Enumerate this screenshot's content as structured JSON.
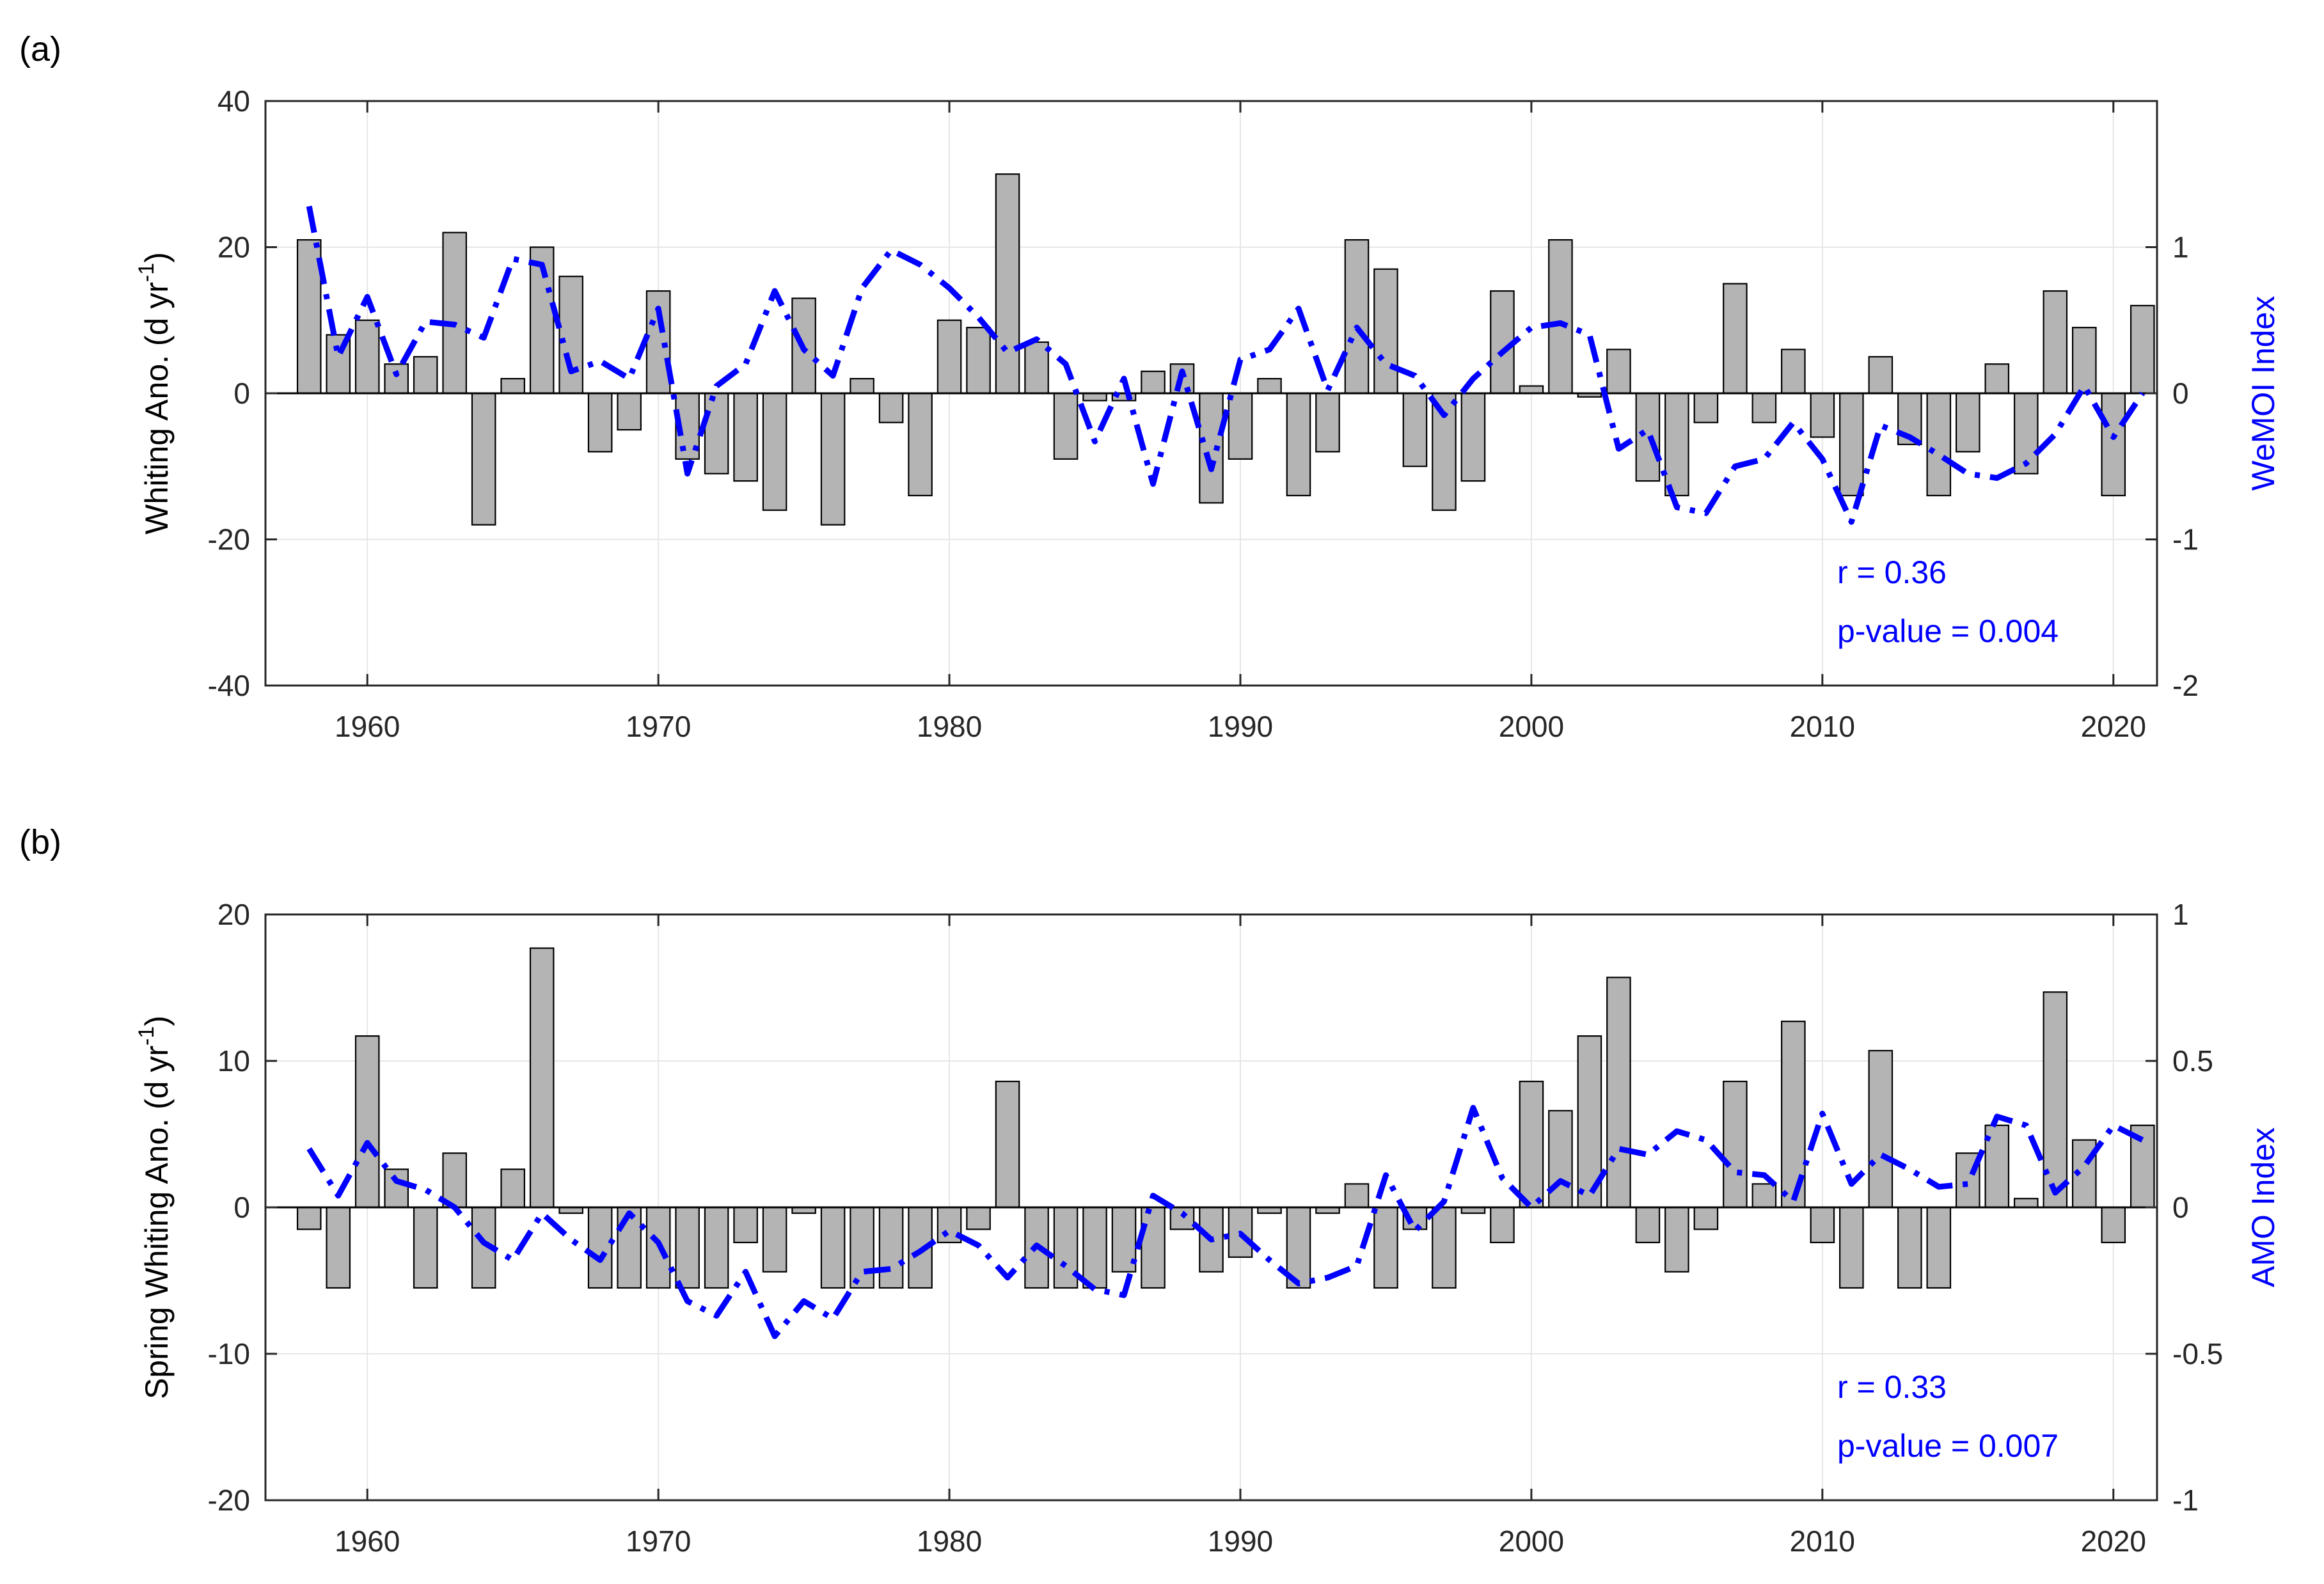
{
  "chart_data": [
    {
      "type": "bar+line",
      "panel_label": "(a)",
      "xlim": [
        1956.5,
        2021.5
      ],
      "xticks": [
        1960,
        1970,
        1980,
        1990,
        2000,
        2010,
        2020
      ],
      "ylabel_left_main": "Whiting Ano. (d yr",
      "ylabel_left_sup": "-1",
      "ylabel_left_end": ")",
      "ylim_left": [
        -40,
        40
      ],
      "yticks_left": [
        -40,
        -20,
        0,
        20,
        40
      ],
      "ylabel_right": "WeMOI Index",
      "ylim_right": [
        -2,
        2
      ],
      "yticks_right": [
        -2,
        -1,
        0,
        1
      ],
      "bar_series": {
        "name": "Whiting Ano.",
        "x": [
          1958,
          1959,
          1960,
          1961,
          1962,
          1963,
          1964,
          1965,
          1966,
          1967,
          1968,
          1969,
          1970,
          1971,
          1972,
          1973,
          1974,
          1975,
          1976,
          1977,
          1978,
          1979,
          1980,
          1981,
          1982,
          1983,
          1984,
          1985,
          1986,
          1987,
          1988,
          1989,
          1990,
          1991,
          1992,
          1993,
          1994,
          1995,
          1996,
          1997,
          1998,
          1999,
          2000,
          2001,
          2002,
          2003,
          2004,
          2005,
          2006,
          2007,
          2008,
          2009,
          2010,
          2011,
          2012,
          2013,
          2014,
          2015,
          2016,
          2017,
          2018,
          2019,
          2020,
          2021
        ],
        "values": [
          21,
          8,
          10,
          4,
          5,
          22,
          -18,
          2,
          20,
          16,
          -8,
          -5,
          14,
          -9,
          -11,
          -12,
          -16,
          13,
          -18,
          2,
          -4,
          -14,
          10,
          9,
          30,
          7,
          -9,
          -1,
          -1,
          3,
          4,
          -15,
          -9,
          2,
          -14,
          -8,
          21,
          17,
          -10,
          -16,
          -12,
          14,
          1,
          21,
          -0.5,
          6,
          -12,
          -14,
          -4,
          15,
          -4,
          6,
          -6,
          -14,
          5,
          -7,
          -14,
          -8,
          4,
          -11,
          14,
          9,
          -14,
          12
        ]
      },
      "line_series": {
        "name": "WeMOI Index",
        "x": [
          1958,
          1959,
          1960,
          1961,
          1962,
          1963,
          1964,
          1965,
          1966,
          1967,
          1968,
          1969,
          1970,
          1971,
          1972,
          1973,
          1974,
          1975,
          1976,
          1977,
          1978,
          1979,
          1980,
          1981,
          1982,
          1983,
          1984,
          1985,
          1986,
          1987,
          1988,
          1989,
          1990,
          1991,
          1992,
          1993,
          1994,
          1995,
          1996,
          1997,
          1998,
          1999,
          2000,
          2001,
          2002,
          2003,
          2004,
          2005,
          2006,
          2007,
          2008,
          2009,
          2010,
          2011,
          2012,
          2013,
          2014,
          2015,
          2016,
          2017,
          2018,
          2019,
          2020,
          2021
        ],
        "values": [
          1.28,
          0.25,
          0.66,
          0.13,
          0.49,
          0.47,
          0.38,
          0.92,
          0.88,
          0.15,
          0.22,
          0.1,
          0.58,
          -0.55,
          0.05,
          0.2,
          0.7,
          0.3,
          0.12,
          0.72,
          0.98,
          0.88,
          0.72,
          0.52,
          0.28,
          0.37,
          0.2,
          -0.33,
          0.1,
          -0.62,
          0.15,
          -0.52,
          0.23,
          0.3,
          0.58,
          0.02,
          0.45,
          0.2,
          0.12,
          -0.15,
          0.1,
          0.28,
          0.45,
          0.48,
          0.4,
          -0.38,
          -0.25,
          -0.78,
          -0.82,
          -0.5,
          -0.45,
          -0.2,
          -0.45,
          -0.88,
          -0.22,
          -0.3,
          -0.42,
          -0.55,
          -0.58,
          -0.48,
          -0.28,
          0.05,
          -0.3,
          0.0
        ]
      },
      "annotation_r": "r  = 0.36",
      "annotation_p": "p-value = 0.004"
    },
    {
      "type": "bar+line",
      "panel_label": "(b)",
      "xlim": [
        1956.5,
        2021.5
      ],
      "xticks": [
        1960,
        1970,
        1980,
        1990,
        2000,
        2010,
        2020
      ],
      "ylabel_left_main": "Spring Whiting Ano. (d yr",
      "ylabel_left_sup": "-1",
      "ylabel_left_end": ")",
      "ylim_left": [
        -20,
        20
      ],
      "yticks_left": [
        -20,
        -10,
        0,
        10,
        20
      ],
      "ylabel_right": "AMO Index",
      "ylim_right": [
        -1,
        1
      ],
      "yticks_right": [
        -1,
        -0.5,
        0,
        0.5,
        1
      ],
      "bar_series": {
        "name": "Spring Whiting Ano.",
        "x": [
          1958,
          1959,
          1960,
          1961,
          1962,
          1963,
          1964,
          1965,
          1966,
          1967,
          1968,
          1969,
          1970,
          1971,
          1972,
          1973,
          1974,
          1975,
          1976,
          1977,
          1978,
          1979,
          1980,
          1981,
          1982,
          1983,
          1984,
          1985,
          1986,
          1987,
          1988,
          1989,
          1990,
          1991,
          1992,
          1993,
          1994,
          1995,
          1996,
          1997,
          1998,
          1999,
          2000,
          2001,
          2002,
          2003,
          2004,
          2005,
          2006,
          2007,
          2008,
          2009,
          2010,
          2011,
          2012,
          2013,
          2014,
          2015,
          2016,
          2017,
          2018,
          2019,
          2020,
          2021
        ],
        "values": [
          -1.5,
          -5.5,
          11.7,
          2.6,
          -5.5,
          3.7,
          -5.5,
          2.6,
          17.7,
          -0.4,
          -5.5,
          -5.5,
          -5.5,
          -5.5,
          -5.5,
          -2.4,
          -4.4,
          -0.4,
          -5.5,
          -5.5,
          -5.5,
          -5.5,
          -2.4,
          -1.5,
          8.6,
          -5.5,
          -5.5,
          -5.5,
          -4.4,
          -5.5,
          -1.5,
          -4.4,
          -3.4,
          -0.4,
          -5.5,
          -0.4,
          1.6,
          -5.5,
          -1.5,
          -5.5,
          -0.4,
          -2.4,
          8.6,
          6.6,
          11.7,
          15.7,
          -2.4,
          -4.4,
          -1.5,
          8.6,
          1.6,
          12.7,
          -2.4,
          -5.5,
          10.7,
          -5.5,
          -5.5,
          3.7,
          5.6,
          0.6,
          14.7,
          4.6,
          -2.4,
          5.6
        ]
      },
      "line_series": {
        "name": "AMO Index",
        "x": [
          1958,
          1959,
          1960,
          1961,
          1962,
          1963,
          1964,
          1965,
          1966,
          1967,
          1968,
          1969,
          1970,
          1971,
          1972,
          1973,
          1974,
          1975,
          1976,
          1977,
          1978,
          1979,
          1980,
          1981,
          1982,
          1983,
          1984,
          1985,
          1986,
          1987,
          1988,
          1989,
          1990,
          1991,
          1992,
          1993,
          1994,
          1995,
          1996,
          1997,
          1998,
          1999,
          2000,
          2001,
          2002,
          2003,
          2004,
          2005,
          2006,
          2007,
          2008,
          2009,
          2010,
          2011,
          2012,
          2013,
          2014,
          2015,
          2016,
          2017,
          2018,
          2019,
          2020,
          2021
        ],
        "values": [
          0.2,
          0.04,
          0.22,
          0.09,
          0.06,
          0.0,
          -0.12,
          -0.18,
          -0.02,
          -0.11,
          -0.18,
          -0.02,
          -0.12,
          -0.32,
          -0.37,
          -0.22,
          -0.44,
          -0.32,
          -0.38,
          -0.22,
          -0.21,
          -0.15,
          -0.08,
          -0.13,
          -0.24,
          -0.13,
          -0.2,
          -0.28,
          -0.3,
          0.04,
          -0.02,
          -0.11,
          -0.09,
          -0.18,
          -0.26,
          -0.24,
          -0.2,
          0.11,
          -0.08,
          0.02,
          0.34,
          0.1,
          0.0,
          0.09,
          0.04,
          0.2,
          0.18,
          0.26,
          0.23,
          0.12,
          0.11,
          0.02,
          0.32,
          0.08,
          0.18,
          0.13,
          0.07,
          0.08,
          0.31,
          0.28,
          0.05,
          0.14,
          0.28,
          0.23
        ]
      },
      "annotation_r": "r  = 0.33",
      "annotation_p": "p-value = 0.007"
    }
  ]
}
